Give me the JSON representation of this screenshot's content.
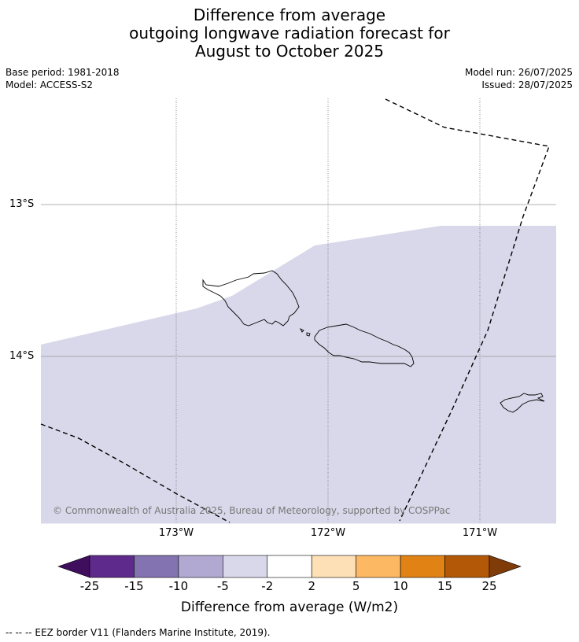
{
  "title": {
    "line1": "Difference from average",
    "line2": "outgoing longwave radiation forecast for",
    "line3": "August to October 2025"
  },
  "meta": {
    "base_period": "Base period: 1981-2018",
    "model": "Model: ACCESS-S2",
    "model_run": "Model run: 26/07/2025",
    "issued": "Issued: 28/07/2025"
  },
  "map": {
    "lat_labels": [
      "13°S",
      "14°S"
    ],
    "lon_labels": [
      "173°W",
      "172°W",
      "171°W"
    ],
    "shading_color": "#d8d8ea",
    "credit": "© Commonwealth of Australia 2025, Bureau of Meteorology, supported by COSPPac",
    "islands": [
      "Savai'i",
      "Upolu",
      "Tutuila"
    ]
  },
  "colorbar": {
    "ticks": [
      "-25",
      "-15",
      "-10",
      "-5",
      "-2",
      "2",
      "5",
      "10",
      "15",
      "25"
    ],
    "colors": [
      "#3f0f5e",
      "#5e2a8c",
      "#8373b0",
      "#b1a9d2",
      "#d8d8ea",
      "#ffffff",
      "#fde0b6",
      "#fdb863",
      "#e08214",
      "#b35806",
      "#7f3b08"
    ],
    "label": "Difference from average (W/m2)"
  },
  "footnote": "--  --  -- EEZ border V11 (Flanders Marine Institute, 2019)."
}
